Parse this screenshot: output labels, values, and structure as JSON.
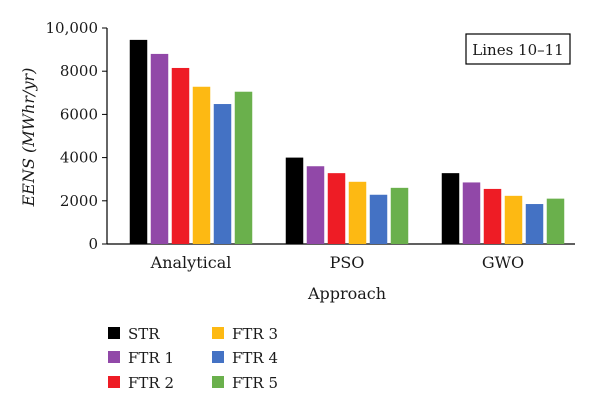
{
  "chart_data": {
    "type": "bar",
    "title": "",
    "annotation": "Lines 10–11",
    "xlabel": "Approach",
    "ylabel": "EENS (MWhr/yr)",
    "ylim": [
      0,
      10000
    ],
    "yticks": [
      0,
      2000,
      4000,
      6000,
      8000,
      10000
    ],
    "ytick_labels": [
      "0",
      "2000",
      "4000",
      "6000",
      "8000",
      "10,000"
    ],
    "categories": [
      "Analytical",
      "PSO",
      "GWO"
    ],
    "grid": false,
    "legend_position": "bottom-left",
    "series": [
      {
        "name": "STR",
        "color": "#000000",
        "values": [
          9450,
          4000,
          3280
        ]
      },
      {
        "name": "FTR 1",
        "color": "#9148a8",
        "values": [
          8800,
          3600,
          2850
        ]
      },
      {
        "name": "FTR 2",
        "color": "#ee1c25",
        "values": [
          8150,
          3280,
          2550
        ]
      },
      {
        "name": "FTR 3",
        "color": "#fdb913",
        "values": [
          7280,
          2880,
          2230
        ]
      },
      {
        "name": "FTR 4",
        "color": "#4472c4",
        "values": [
          6480,
          2280,
          1850
        ]
      },
      {
        "name": "FTR 5",
        "color": "#6ab04c",
        "values": [
          7050,
          2600,
          2100
        ]
      }
    ]
  }
}
